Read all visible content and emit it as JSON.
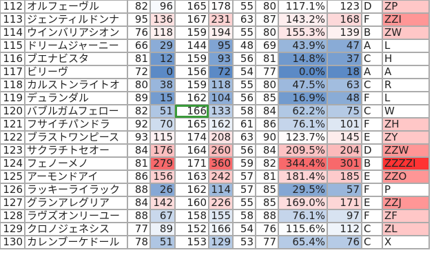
{
  "color_scale": {
    "low": "#5b8ac6",
    "mid": "#ffffff",
    "high": "#f8696b"
  },
  "selected_cell": {
    "row": "120",
    "column": 5
  },
  "rows": [
    {
      "no": "112",
      "name": "オルフェーヴル",
      "a": 82,
      "b": 96,
      "c": 165,
      "d": 178,
      "e": 55,
      "f": 80,
      "pct": "117.1%",
      "g": 123,
      "grade": "D",
      "rank": "ZP",
      "rank_color": "#ffc7c7"
    },
    {
      "no": "113",
      "name": "ジェンティルドンナ",
      "a": 95,
      "b": 136,
      "c": 167,
      "d": 231,
      "e": 63,
      "f": 87,
      "pct": "143.2%",
      "g": 168,
      "grade": "F",
      "rank": "ZZI",
      "rank_color": "#ff9696"
    },
    {
      "no": "114",
      "name": "ウインバリアシオン",
      "a": 76,
      "b": 118,
      "c": 159,
      "d": 194,
      "e": 55,
      "f": 80,
      "pct": "155.3%",
      "g": 139,
      "grade": "B",
      "rank": "ZW",
      "rank_color": "#ffc7c7"
    },
    {
      "no": "115",
      "name": "ドリームジャーニー",
      "a": 66,
      "b": 29,
      "c": 144,
      "d": 95,
      "e": 48,
      "f": 69,
      "pct": "43.9%",
      "g": 47,
      "grade": "A",
      "rank": "L",
      "rank_color": "#ffffff"
    },
    {
      "no": "116",
      "name": "ブエナビスタ",
      "a": 81,
      "b": 12,
      "c": 159,
      "d": 93,
      "e": 56,
      "f": 81,
      "pct": "14.8%",
      "g": 37,
      "grade": "C",
      "rank": "H",
      "rank_color": "#ffffff"
    },
    {
      "no": "117",
      "name": "ビリーヴ",
      "a": 72,
      "b": 0,
      "c": 156,
      "d": 72,
      "e": 54,
      "f": 77,
      "pct": "0.0%",
      "g": 18,
      "grade": "A",
      "rank": "A",
      "rank_color": "#ffffff"
    },
    {
      "no": "118",
      "name": "カルストンライトオ",
      "a": 80,
      "b": 38,
      "c": 159,
      "d": 118,
      "e": 55,
      "f": 80,
      "pct": "47.5%",
      "g": 63,
      "grade": "C",
      "rank": "R",
      "rank_color": "#ffffff"
    },
    {
      "no": "119",
      "name": "デュランダル",
      "a": 89,
      "b": 15,
      "c": 162,
      "d": 104,
      "e": 56,
      "f": 85,
      "pct": "16.9%",
      "g": 48,
      "grade": "F",
      "rank": "L",
      "rank_color": "#ffffff"
    },
    {
      "no": "120",
      "name": "バブルガムフェロー",
      "a": 82,
      "b": 51,
      "c": 166,
      "d": 133,
      "e": 58,
      "f": 84,
      "pct": "62.2%",
      "g": 75,
      "grade": "C",
      "rank": "W",
      "rank_color": "#ffffff"
    },
    {
      "no": "121",
      "name": "フサイチパンドラ",
      "a": 92,
      "b": 70,
      "c": 165,
      "d": 162,
      "e": 61,
      "f": 86,
      "pct": "76.1%",
      "g": 101,
      "grade": "F",
      "rank": "ZH",
      "rank_color": "#ffc7c7"
    },
    {
      "no": "122",
      "name": "ブラストワンピース",
      "a": 93,
      "b": 115,
      "c": 174,
      "d": 208,
      "e": 63,
      "f": 90,
      "pct": "123.7%",
      "g": 145,
      "grade": "E",
      "rank": "ZY",
      "rank_color": "#ffc7c7"
    },
    {
      "no": "123",
      "name": "サクラチトセオー",
      "a": 84,
      "b": 176,
      "c": 164,
      "d": 260,
      "e": 56,
      "f": 84,
      "pct": "209.5%",
      "g": 204,
      "grade": "D",
      "rank": "ZZW",
      "rank_color": "#ff9696"
    },
    {
      "no": "124",
      "name": "フェノーメノ",
      "a": 81,
      "b": 279,
      "c": 171,
      "d": 360,
      "e": 59,
      "f": 82,
      "pct": "344.4%",
      "g": 301,
      "grade": "B",
      "rank": "ZZZZI",
      "rank_color": "#ff3333"
    },
    {
      "no": "125",
      "name": "アーモンドアイ",
      "a": 86,
      "b": 156,
      "c": 163,
      "d": 242,
      "e": 57,
      "f": 81,
      "pct": "181.4%",
      "g": 185,
      "grade": "E",
      "rank": "ZZO",
      "rank_color": "#ff9696"
    },
    {
      "no": "126",
      "name": "ラッキーライラック",
      "a": 88,
      "b": 26,
      "c": 162,
      "d": 114,
      "e": 57,
      "f": 85,
      "pct": "29.5%",
      "g": 57,
      "grade": "F",
      "rank": "P",
      "rank_color": "#ffffff"
    },
    {
      "no": "127",
      "name": "グランアレグリア",
      "a": 84,
      "b": 142,
      "c": 160,
      "d": 226,
      "e": 55,
      "f": 85,
      "pct": "169.0%",
      "g": 171,
      "grade": "E",
      "rank": "ZZJ",
      "rank_color": "#ff9696"
    },
    {
      "no": "128",
      "name": "ラヴズオンリーユー",
      "a": 88,
      "b": 67,
      "c": 158,
      "d": 155,
      "e": 58,
      "f": 88,
      "pct": "76.1%",
      "g": 97,
      "grade": "F",
      "rank": "ZF",
      "rank_color": "#ffc7c7"
    },
    {
      "no": "129",
      "name": "クロノジェネシス",
      "a": 77,
      "b": 89,
      "c": 152,
      "d": 166,
      "e": 54,
      "f": 76,
      "pct": "115.6%",
      "g": 112,
      "grade": "C",
      "rank": "ZL",
      "rank_color": "#ffc7c7"
    },
    {
      "no": "130",
      "name": "カレンブーケドール",
      "a": 78,
      "b": 51,
      "c": 153,
      "d": 129,
      "e": 53,
      "f": 77,
      "pct": "65.4%",
      "g": 76,
      "grade": "C",
      "rank": "X",
      "rank_color": "#ffffff"
    }
  ]
}
